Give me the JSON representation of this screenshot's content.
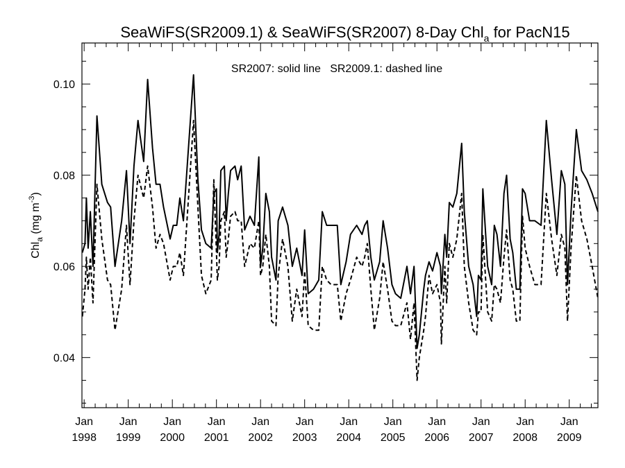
{
  "chart_data": {
    "type": "line",
    "title": {
      "main": "SeaWiFS(SR2009.1) & SeaWiFS(SR2007) 8-Day Chl",
      "sub": "a",
      "tail": " for PacN15"
    },
    "annotation": "SR2007: solid line   SR2009.1: dashed line",
    "ylabel": {
      "main": "Chl",
      "sub": "a",
      "unit_open": " (mg m",
      "unit_sup": "-3",
      "unit_close": ")"
    },
    "xlim": [
      1997.95,
      2009.65
    ],
    "ylim": [
      0.029,
      0.109
    ],
    "y_ticks": [
      0.04,
      0.06,
      0.08,
      0.1
    ],
    "y_tick_labels": [
      "0.04",
      "0.06",
      "0.08",
      "0.10"
    ],
    "x_ticks": [
      {
        "value": 1998,
        "month": "Jan",
        "year": "1998"
      },
      {
        "value": 1999,
        "month": "Jan",
        "year": "1999"
      },
      {
        "value": 2000,
        "month": "Jan",
        "year": "2000"
      },
      {
        "value": 2001,
        "month": "Jan",
        "year": "2001"
      },
      {
        "value": 2002,
        "month": "Jan",
        "year": "2002"
      },
      {
        "value": 2003,
        "month": "Jan",
        "year": "2003"
      },
      {
        "value": 2004,
        "month": "Jan",
        "year": "2004"
      },
      {
        "value": 2005,
        "month": "Jan",
        "year": "2005"
      },
      {
        "value": 2006,
        "month": "Jan",
        "year": "2006"
      },
      {
        "value": 2007,
        "month": "Jan",
        "year": "2007"
      },
      {
        "value": 2008,
        "month": "Jan",
        "year": "2008"
      },
      {
        "value": 2009,
        "month": "Jan",
        "year": "2009"
      }
    ],
    "grid": false,
    "series": [
      {
        "style": "solid",
        "points": [
          [
            1997.96,
            0.063
          ],
          [
            1998.02,
            0.065
          ],
          [
            1998.05,
            0.075
          ],
          [
            1998.09,
            0.064
          ],
          [
            1998.14,
            0.072
          ],
          [
            1998.2,
            0.06
          ],
          [
            1998.29,
            0.093
          ],
          [
            1998.4,
            0.078
          ],
          [
            1998.53,
            0.074
          ],
          [
            1998.6,
            0.073
          ],
          [
            1998.7,
            0.06
          ],
          [
            1998.85,
            0.07
          ],
          [
            1998.96,
            0.081
          ],
          [
            1999.04,
            0.065
          ],
          [
            1999.13,
            0.082
          ],
          [
            1999.22,
            0.092
          ],
          [
            1999.35,
            0.083
          ],
          [
            1999.44,
            0.101
          ],
          [
            1999.55,
            0.086
          ],
          [
            1999.63,
            0.078
          ],
          [
            1999.72,
            0.078
          ],
          [
            1999.8,
            0.073
          ],
          [
            1999.95,
            0.066
          ],
          [
            2000.02,
            0.069
          ],
          [
            2000.1,
            0.069
          ],
          [
            2000.17,
            0.075
          ],
          [
            2000.25,
            0.07
          ],
          [
            2000.48,
            0.102
          ],
          [
            2000.58,
            0.079
          ],
          [
            2000.66,
            0.068
          ],
          [
            2000.76,
            0.065
          ],
          [
            2000.88,
            0.064
          ],
          [
            2000.94,
            0.076
          ],
          [
            2001.0,
            0.077
          ],
          [
            2001.02,
            0.063
          ],
          [
            2001.06,
            0.067
          ],
          [
            2001.1,
            0.081
          ],
          [
            2001.18,
            0.082
          ],
          [
            2001.22,
            0.07
          ],
          [
            2001.27,
            0.076
          ],
          [
            2001.32,
            0.081
          ],
          [
            2001.42,
            0.082
          ],
          [
            2001.48,
            0.079
          ],
          [
            2001.56,
            0.082
          ],
          [
            2001.64,
            0.068
          ],
          [
            2001.76,
            0.071
          ],
          [
            2001.86,
            0.069
          ],
          [
            2001.96,
            0.084
          ],
          [
            2002.0,
            0.06
          ],
          [
            2002.05,
            0.064
          ],
          [
            2002.12,
            0.076
          ],
          [
            2002.2,
            0.072
          ],
          [
            2002.25,
            0.062
          ],
          [
            2002.35,
            0.057
          ],
          [
            2002.4,
            0.07
          ],
          [
            2002.5,
            0.073
          ],
          [
            2002.62,
            0.069
          ],
          [
            2002.72,
            0.06
          ],
          [
            2002.82,
            0.064
          ],
          [
            2002.94,
            0.058
          ],
          [
            2003.0,
            0.068
          ],
          [
            2003.08,
            0.054
          ],
          [
            2003.2,
            0.055
          ],
          [
            2003.32,
            0.057
          ],
          [
            2003.4,
            0.072
          ],
          [
            2003.5,
            0.069
          ],
          [
            2003.6,
            0.069
          ],
          [
            2003.74,
            0.069
          ],
          [
            2003.82,
            0.056
          ],
          [
            2003.94,
            0.061
          ],
          [
            2004.04,
            0.067
          ],
          [
            2004.18,
            0.069
          ],
          [
            2004.3,
            0.067
          ],
          [
            2004.36,
            0.069
          ],
          [
            2004.42,
            0.07
          ],
          [
            2004.5,
            0.062
          ],
          [
            2004.58,
            0.057
          ],
          [
            2004.7,
            0.061
          ],
          [
            2004.78,
            0.07
          ],
          [
            2004.88,
            0.064
          ],
          [
            2004.98,
            0.056
          ],
          [
            2005.06,
            0.054
          ],
          [
            2005.18,
            0.053
          ],
          [
            2005.32,
            0.06
          ],
          [
            2005.4,
            0.054
          ],
          [
            2005.48,
            0.06
          ],
          [
            2005.55,
            0.042
          ],
          [
            2005.6,
            0.045
          ],
          [
            2005.7,
            0.055
          ],
          [
            2005.74,
            0.058
          ],
          [
            2005.82,
            0.061
          ],
          [
            2005.9,
            0.059
          ],
          [
            2006.0,
            0.063
          ],
          [
            2006.08,
            0.06
          ],
          [
            2006.1,
            0.054
          ],
          [
            2006.18,
            0.067
          ],
          [
            2006.22,
            0.062
          ],
          [
            2006.28,
            0.074
          ],
          [
            2006.36,
            0.073
          ],
          [
            2006.45,
            0.076
          ],
          [
            2006.56,
            0.087
          ],
          [
            2006.62,
            0.072
          ],
          [
            2006.72,
            0.06
          ],
          [
            2006.82,
            0.056
          ],
          [
            2006.9,
            0.049
          ],
          [
            2006.94,
            0.058
          ],
          [
            2007.0,
            0.057
          ],
          [
            2007.04,
            0.077
          ],
          [
            2007.15,
            0.06
          ],
          [
            2007.24,
            0.056
          ],
          [
            2007.3,
            0.069
          ],
          [
            2007.36,
            0.067
          ],
          [
            2007.44,
            0.06
          ],
          [
            2007.52,
            0.076
          ],
          [
            2007.58,
            0.08
          ],
          [
            2007.66,
            0.066
          ],
          [
            2007.72,
            0.063
          ],
          [
            2007.8,
            0.055
          ],
          [
            2007.88,
            0.055
          ],
          [
            2007.94,
            0.077
          ],
          [
            2008.0,
            0.076
          ],
          [
            2008.1,
            0.07
          ],
          [
            2008.22,
            0.07
          ],
          [
            2008.36,
            0.069
          ],
          [
            2008.48,
            0.092
          ],
          [
            2008.6,
            0.079
          ],
          [
            2008.72,
            0.067
          ],
          [
            2008.82,
            0.081
          ],
          [
            2008.9,
            0.078
          ],
          [
            2008.96,
            0.056
          ],
          [
            2009.04,
            0.072
          ],
          [
            2009.16,
            0.09
          ],
          [
            2009.28,
            0.081
          ],
          [
            2009.4,
            0.079
          ],
          [
            2009.52,
            0.076
          ],
          [
            2009.65,
            0.072
          ]
        ]
      },
      {
        "style": "dashed",
        "points": [
          [
            1997.96,
            0.049
          ],
          [
            1998.02,
            0.055
          ],
          [
            1998.05,
            0.062
          ],
          [
            1998.09,
            0.055
          ],
          [
            1998.14,
            0.062
          ],
          [
            1998.2,
            0.052
          ],
          [
            1998.29,
            0.078
          ],
          [
            1998.4,
            0.066
          ],
          [
            1998.53,
            0.057
          ],
          [
            1998.6,
            0.056
          ],
          [
            1998.7,
            0.046
          ],
          [
            1998.85,
            0.055
          ],
          [
            1998.96,
            0.069
          ],
          [
            1999.04,
            0.056
          ],
          [
            1999.13,
            0.07
          ],
          [
            1999.22,
            0.08
          ],
          [
            1999.35,
            0.075
          ],
          [
            1999.44,
            0.082
          ],
          [
            1999.55,
            0.073
          ],
          [
            1999.63,
            0.064
          ],
          [
            1999.72,
            0.067
          ],
          [
            1999.8,
            0.065
          ],
          [
            1999.95,
            0.057
          ],
          [
            2000.02,
            0.06
          ],
          [
            2000.1,
            0.06
          ],
          [
            2000.17,
            0.063
          ],
          [
            2000.25,
            0.058
          ],
          [
            2000.48,
            0.092
          ],
          [
            2000.58,
            0.073
          ],
          [
            2000.66,
            0.058
          ],
          [
            2000.76,
            0.054
          ],
          [
            2000.88,
            0.057
          ],
          [
            2000.94,
            0.079
          ],
          [
            2001.0,
            0.063
          ],
          [
            2001.02,
            0.057
          ],
          [
            2001.06,
            0.06
          ],
          [
            2001.1,
            0.07
          ],
          [
            2001.18,
            0.072
          ],
          [
            2001.22,
            0.062
          ],
          [
            2001.27,
            0.066
          ],
          [
            2001.32,
            0.071
          ],
          [
            2001.42,
            0.072
          ],
          [
            2001.48,
            0.07
          ],
          [
            2001.56,
            0.07
          ],
          [
            2001.64,
            0.06
          ],
          [
            2001.76,
            0.065
          ],
          [
            2001.86,
            0.064
          ],
          [
            2001.96,
            0.07
          ],
          [
            2002.0,
            0.058
          ],
          [
            2002.05,
            0.06
          ],
          [
            2002.12,
            0.067
          ],
          [
            2002.2,
            0.06
          ],
          [
            2002.25,
            0.048
          ],
          [
            2002.35,
            0.047
          ],
          [
            2002.4,
            0.058
          ],
          [
            2002.5,
            0.066
          ],
          [
            2002.62,
            0.06
          ],
          [
            2002.72,
            0.048
          ],
          [
            2002.82,
            0.055
          ],
          [
            2002.94,
            0.049
          ],
          [
            2003.0,
            0.059
          ],
          [
            2003.08,
            0.047
          ],
          [
            2003.2,
            0.046
          ],
          [
            2003.32,
            0.046
          ],
          [
            2003.4,
            0.06
          ],
          [
            2003.5,
            0.057
          ],
          [
            2003.6,
            0.056
          ],
          [
            2003.74,
            0.056
          ],
          [
            2003.82,
            0.048
          ],
          [
            2003.94,
            0.054
          ],
          [
            2004.04,
            0.057
          ],
          [
            2004.18,
            0.062
          ],
          [
            2004.3,
            0.06
          ],
          [
            2004.36,
            0.062
          ],
          [
            2004.42,
            0.065
          ],
          [
            2004.5,
            0.055
          ],
          [
            2004.58,
            0.046
          ],
          [
            2004.7,
            0.053
          ],
          [
            2004.78,
            0.061
          ],
          [
            2004.88,
            0.055
          ],
          [
            2004.98,
            0.048
          ],
          [
            2005.06,
            0.047
          ],
          [
            2005.18,
            0.047
          ],
          [
            2005.32,
            0.052
          ],
          [
            2005.4,
            0.044
          ],
          [
            2005.48,
            0.052
          ],
          [
            2005.55,
            0.035
          ],
          [
            2005.6,
            0.04
          ],
          [
            2005.7,
            0.046
          ],
          [
            2005.74,
            0.049
          ],
          [
            2005.82,
            0.058
          ],
          [
            2005.9,
            0.054
          ],
          [
            2006.0,
            0.056
          ],
          [
            2006.08,
            0.052
          ],
          [
            2006.1,
            0.043
          ],
          [
            2006.18,
            0.06
          ],
          [
            2006.22,
            0.052
          ],
          [
            2006.28,
            0.065
          ],
          [
            2006.36,
            0.062
          ],
          [
            2006.45,
            0.066
          ],
          [
            2006.56,
            0.076
          ],
          [
            2006.62,
            0.06
          ],
          [
            2006.72,
            0.052
          ],
          [
            2006.82,
            0.046
          ],
          [
            2006.9,
            0.045
          ],
          [
            2006.94,
            0.05
          ],
          [
            2007.0,
            0.05
          ],
          [
            2007.04,
            0.067
          ],
          [
            2007.15,
            0.05
          ],
          [
            2007.24,
            0.048
          ],
          [
            2007.3,
            0.056
          ],
          [
            2007.36,
            0.055
          ],
          [
            2007.44,
            0.052
          ],
          [
            2007.52,
            0.062
          ],
          [
            2007.58,
            0.068
          ],
          [
            2007.66,
            0.057
          ],
          [
            2007.72,
            0.055
          ],
          [
            2007.8,
            0.048
          ],
          [
            2007.88,
            0.048
          ],
          [
            2007.94,
            0.071
          ],
          [
            2008.0,
            0.064
          ],
          [
            2008.1,
            0.06
          ],
          [
            2008.22,
            0.056
          ],
          [
            2008.36,
            0.056
          ],
          [
            2008.48,
            0.076
          ],
          [
            2008.6,
            0.066
          ],
          [
            2008.72,
            0.058
          ],
          [
            2008.82,
            0.067
          ],
          [
            2008.9,
            0.064
          ],
          [
            2008.96,
            0.048
          ],
          [
            2009.04,
            0.064
          ],
          [
            2009.16,
            0.08
          ],
          [
            2009.28,
            0.07
          ],
          [
            2009.4,
            0.066
          ],
          [
            2009.52,
            0.06
          ],
          [
            2009.65,
            0.053
          ]
        ]
      }
    ]
  }
}
